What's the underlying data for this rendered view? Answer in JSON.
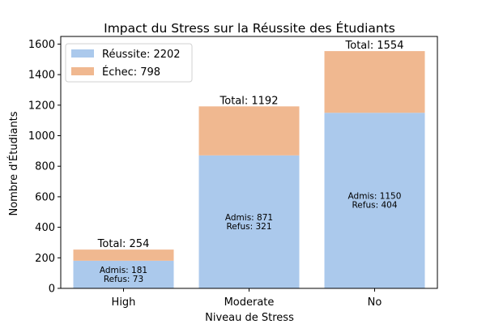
{
  "chart_data": {
    "type": "bar",
    "stacked": true,
    "title": "Impact du Stress sur la Réussite des Étudiants",
    "xlabel": "Niveau de Stress",
    "ylabel": "Nombre d'Étudiants",
    "categories": [
      "High",
      "Moderate",
      "No"
    ],
    "series": [
      {
        "name": "Réussite: 2202",
        "values": [
          181,
          871,
          1150
        ],
        "color": "#abc9ec"
      },
      {
        "name": "Échec: 798",
        "values": [
          73,
          321,
          404
        ],
        "color": "#f0b890"
      }
    ],
    "totals": [
      "Total: 254",
      "Total: 1192",
      "Total: 1554"
    ],
    "bar_labels": [
      {
        "admis": "Admis: 181",
        "refus": "Refus: 73"
      },
      {
        "admis": "Admis: 871",
        "refus": "Refus: 321"
      },
      {
        "admis": "Admis: 1150",
        "refus": "Refus: 404"
      }
    ],
    "ylim": [
      0,
      1650
    ],
    "yticks": [
      0,
      200,
      400,
      600,
      800,
      1000,
      1200,
      1400,
      1600
    ],
    "grid": false,
    "legend_position": "top-left"
  }
}
